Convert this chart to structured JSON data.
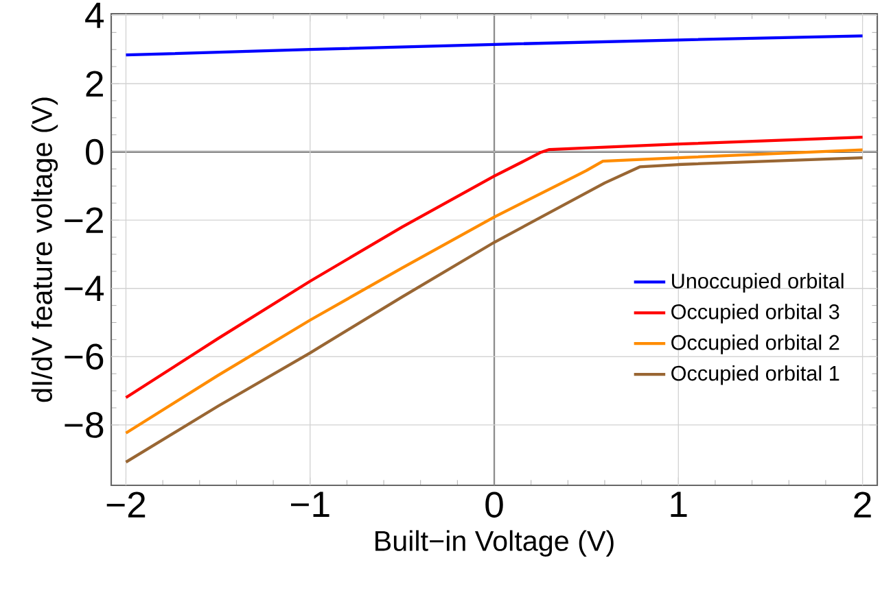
{
  "chart_data": {
    "type": "line",
    "xlabel": "Built−in Voltage (V)",
    "ylabel": "dI/dV feature voltage (V)",
    "xlim": [
      -2.08,
      2.08
    ],
    "ylim": [
      -9.77,
      4.05
    ],
    "xticks": [
      {
        "value": -2,
        "label": "−2"
      },
      {
        "value": -1,
        "label": "−1"
      },
      0,
      1,
      2
    ],
    "yticks": [
      {
        "value": -8,
        "label": "−8"
      },
      {
        "value": -6,
        "label": "−6"
      },
      {
        "value": -4,
        "label": "−4"
      },
      {
        "value": -2,
        "label": "−2"
      },
      0,
      2,
      4
    ],
    "grid": true,
    "legend": "bottom right",
    "line_style": "solid",
    "series": [
      {
        "name": "Unoccupied orbital",
        "color": "#0000ff",
        "x": [
          -2,
          -1,
          0,
          1,
          2
        ],
        "values": [
          2.84,
          3.0,
          3.15,
          3.28,
          3.4
        ]
      },
      {
        "name": "Occupied orbital 3",
        "color": "#ff0000",
        "x": [
          -2,
          -1.5,
          -1,
          -0.5,
          0,
          0.15,
          0.25,
          0.3,
          1,
          2
        ],
        "values": [
          -7.2,
          -5.47,
          -3.79,
          -2.2,
          -0.71,
          -0.3,
          -0.02,
          0.07,
          0.23,
          0.43
        ]
      },
      {
        "name": "Occupied orbital 2",
        "color": "#ff8c00",
        "x": [
          -2,
          -1.5,
          -1,
          -0.5,
          0,
          0.5,
          0.59,
          1,
          2
        ],
        "values": [
          -8.24,
          -6.55,
          -4.93,
          -3.4,
          -1.91,
          -0.55,
          -0.27,
          -0.17,
          0.06
        ]
      },
      {
        "name": "Occupied orbital 1",
        "color": "#996633",
        "x": [
          -2,
          -1.5,
          -1,
          -0.5,
          0,
          0.6,
          0.79,
          1,
          2
        ],
        "values": [
          -9.09,
          -7.45,
          -5.89,
          -4.25,
          -2.65,
          -0.91,
          -0.44,
          -0.37,
          -0.17
        ]
      }
    ]
  }
}
